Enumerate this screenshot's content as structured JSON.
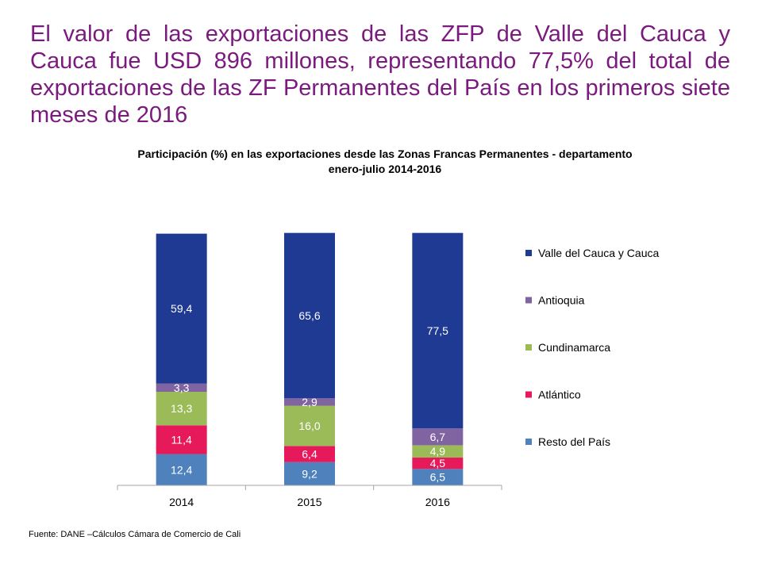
{
  "slide": {
    "headline": "El valor de las exportaciones de las ZFP de Valle del Cauca y Cauca fue USD 896 millones, representando 77,5% del total de exportaciones de las ZF Permanentes del País en los primeros siete meses de 2016",
    "source": "Fuente: DANE –Cálculos Cámara de Comercio de Cali"
  },
  "chart_data": {
    "type": "bar",
    "stacked": true,
    "title": "Participación (%) en las exportaciones desde las Zonas Francas Permanentes - departamento",
    "subtitle": "enero-julio 2014-2016",
    "categories": [
      "2014",
      "2015",
      "2016"
    ],
    "series": [
      {
        "name": "Resto del País",
        "values": [
          12.4,
          9.2,
          6.5
        ],
        "labels": [
          "12,4",
          "9,2",
          "6,5"
        ],
        "color": "#4f81bd"
      },
      {
        "name": "Atlántico",
        "values": [
          11.4,
          6.4,
          4.5
        ],
        "labels": [
          "11,4",
          "6,4",
          "4,5"
        ],
        "color": "#e6195a"
      },
      {
        "name": "Cundinamarca",
        "values": [
          13.3,
          16.0,
          4.9
        ],
        "labels": [
          "13,3",
          "16,0",
          "4,9"
        ],
        "color": "#9bbb59"
      },
      {
        "name": "Antioquia",
        "values": [
          3.3,
          2.9,
          6.7
        ],
        "labels": [
          "3,3",
          "2,9",
          "6,7"
        ],
        "color": "#8064a2"
      },
      {
        "name": "Valle del Cauca y Cauca",
        "values": [
          59.4,
          65.6,
          77.5
        ],
        "labels": [
          "59,4",
          "65,6",
          "77,5"
        ],
        "color": "#1f3a93"
      }
    ],
    "legend_order": [
      "Valle del Cauca y Cauca",
      "Antioquia",
      "Cundinamarca",
      "Atlántico",
      "Resto del País"
    ],
    "legend_position": "right",
    "label_color": "#ffffff",
    "axis_color": "#a6a6a6",
    "ylim": [
      0,
      100
    ],
    "grid": false
  }
}
